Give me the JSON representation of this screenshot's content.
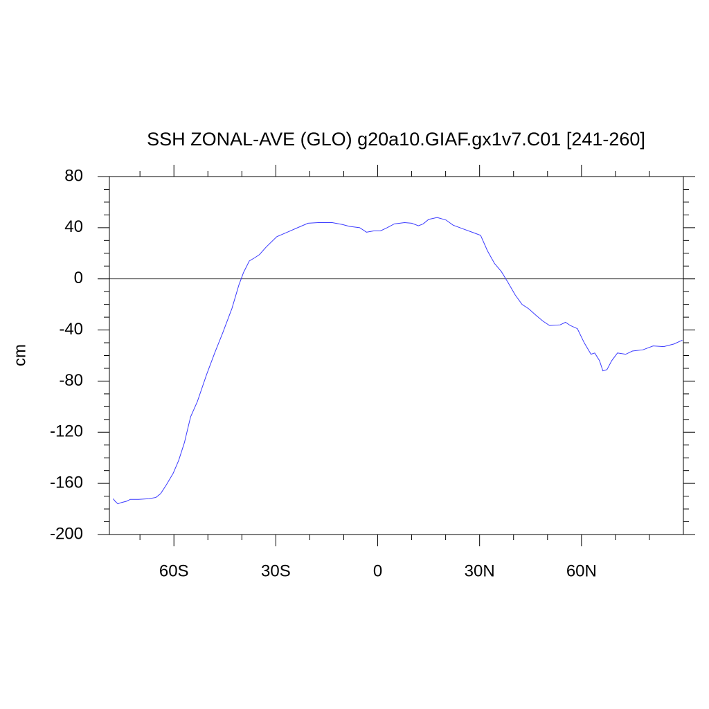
{
  "chart_data": {
    "type": "line",
    "title": "SSH ZONAL-AVE (GLO) g20a10.GIAF.gx1v7.C01 [241-260]",
    "y_label": "cm",
    "xlim": [
      -79,
      90
    ],
    "ylim": [
      -200,
      80
    ],
    "xticks": [
      {
        "value": -60,
        "label": "60S"
      },
      {
        "value": -30,
        "label": "30S"
      },
      0,
      {
        "value": 30,
        "label": "30N"
      },
      {
        "value": 60,
        "label": "60N"
      }
    ],
    "xminorticks": [
      -70,
      -50,
      -40,
      -20,
      -10,
      10,
      20,
      40,
      50,
      70,
      80
    ],
    "yticks": [
      -200,
      -160,
      -120,
      -80,
      -40,
      0,
      40,
      80
    ],
    "yminorticks": [
      -190,
      -180,
      -170,
      -150,
      -140,
      -130,
      -110,
      -100,
      -90,
      -70,
      -60,
      -50,
      -30,
      -20,
      -10,
      10,
      20,
      30,
      50,
      60,
      70
    ],
    "zero_line": true,
    "x": [
      -77.9,
      -77.3,
      -76.5,
      -75.5,
      -74,
      -72.8,
      -70.4,
      -67.3,
      -65.3,
      -63.9,
      -62.2,
      -60.2,
      -58.6,
      -56.9,
      -55.1,
      -53.1,
      -50.4,
      -48,
      -45.6,
      -42.9,
      -40.9,
      -39.5,
      -37.8,
      -36.2,
      -34.8,
      -32.8,
      -29.7,
      -26.6,
      -23.6,
      -20.5,
      -17.5,
      -13.4,
      -10.4,
      -8.3,
      -5.3,
      -3.3,
      -1.2,
      0.8,
      2.8,
      4.9,
      7.9,
      10,
      12,
      13.4,
      15,
      17.5,
      20.1,
      22.2,
      25.2,
      28.3,
      30.3,
      32.3,
      34.4,
      36.4,
      38.4,
      40.5,
      42.5,
      44.5,
      46.6,
      48.6,
      50.6,
      53.7,
      55.3,
      56.7,
      58.8,
      60.8,
      62.8,
      63.9,
      65.3,
      66.3,
      67.5,
      68.9,
      70.6,
      73,
      75,
      78.1,
      81.1,
      84.2,
      87.2,
      89.7
    ],
    "series": [
      {
        "name": "SSH",
        "color": "#3a3aff",
        "values": [
          -172,
          -174,
          -176,
          -175,
          -174,
          -172.5,
          -172.5,
          -172,
          -171,
          -168,
          -161,
          -152,
          -142,
          -128,
          -108,
          -96,
          -75,
          -58,
          -42,
          -23,
          -5,
          5,
          14,
          16.5,
          19,
          25,
          33,
          36.5,
          40,
          43.5,
          44,
          44,
          42.5,
          41,
          40,
          36.5,
          37.5,
          37.5,
          40,
          43,
          44,
          43.5,
          41.5,
          43,
          46.5,
          48,
          46,
          42,
          39,
          36,
          34,
          22,
          12,
          5.7,
          -3,
          -12.7,
          -20,
          -23.5,
          -28.5,
          -33,
          -36.5,
          -36,
          -34,
          -36.5,
          -39,
          -50,
          -59,
          -58,
          -64,
          -72,
          -71,
          -64,
          -58,
          -59,
          -56.5,
          -55.5,
          -52.5,
          -53,
          -51,
          -48
        ]
      }
    ]
  }
}
